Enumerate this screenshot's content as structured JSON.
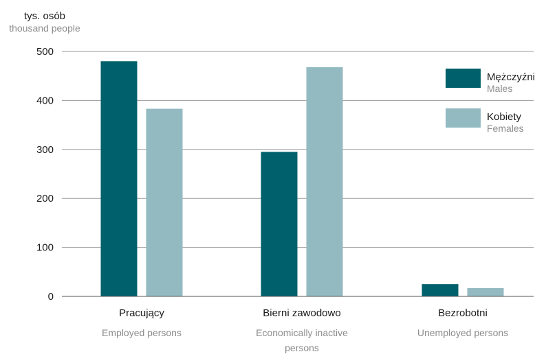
{
  "chart_data": {
    "type": "bar",
    "unit_label": {
      "pl": "tys. osób",
      "en": "thousand people"
    },
    "categories": [
      {
        "pl": "Pracujący",
        "en": [
          "Employed persons"
        ]
      },
      {
        "pl": "Bierni zawodowo",
        "en": [
          "Economically inactive",
          "persons"
        ]
      },
      {
        "pl": "Bezrobotni",
        "en": [
          "Unemployed persons"
        ]
      }
    ],
    "series": [
      {
        "name": "Mężczyźni",
        "name_en": "Males",
        "color": "#00606b",
        "values": [
          480,
          295,
          25
        ]
      },
      {
        "name": "Kobiety",
        "name_en": "Females",
        "color": "#93bac1",
        "values": [
          383,
          468,
          17
        ]
      }
    ],
    "ylim": [
      0,
      500
    ],
    "yticks": [
      0,
      100,
      200,
      300,
      400,
      500
    ],
    "grid": true,
    "legend_position": "top-right"
  }
}
